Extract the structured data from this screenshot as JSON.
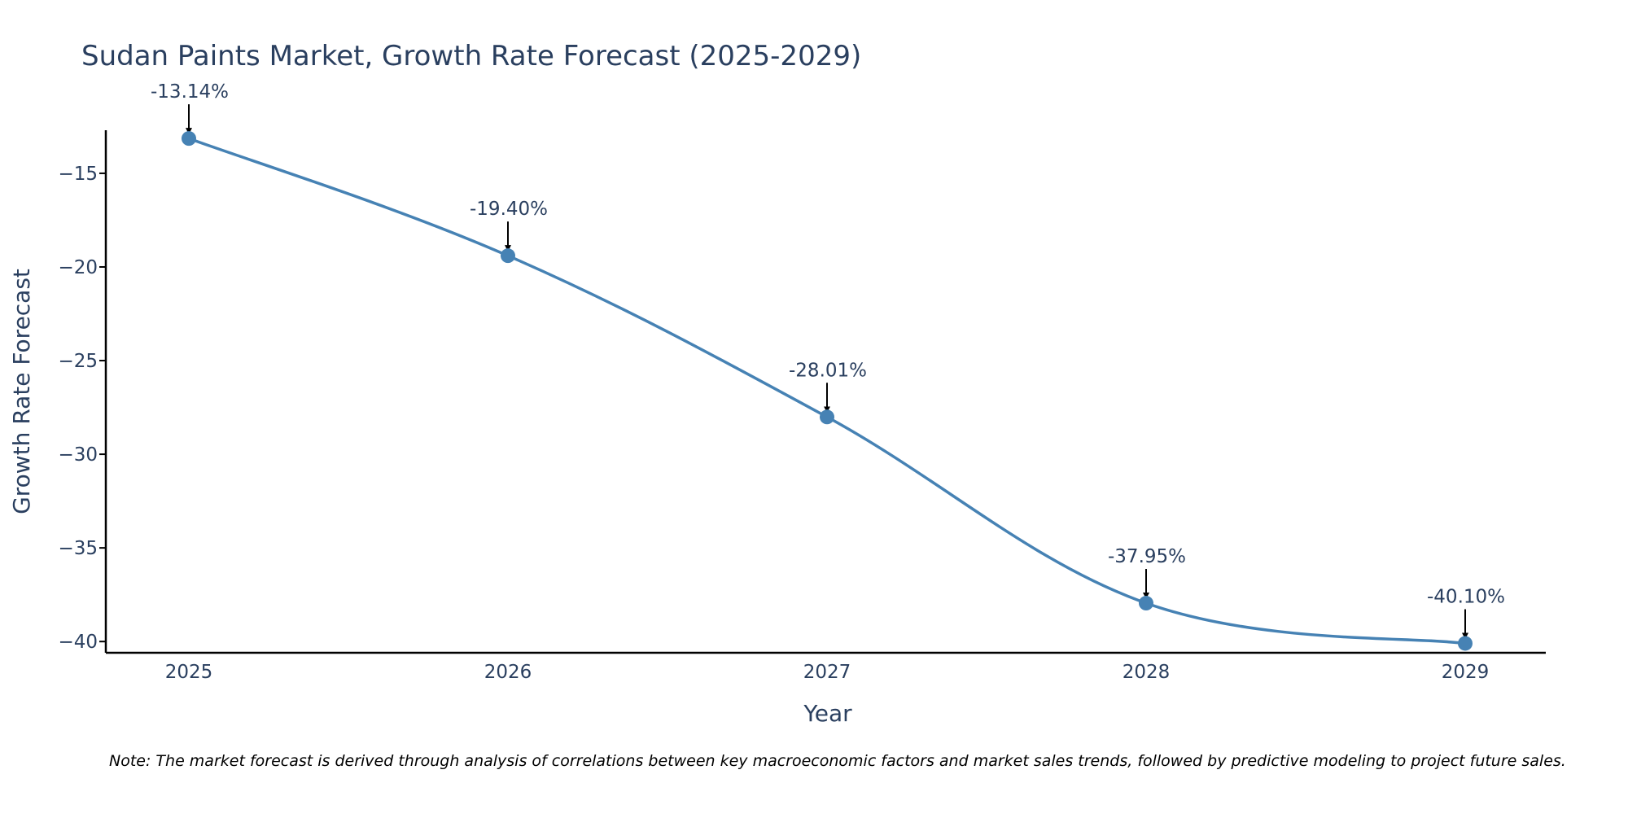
{
  "chart_data": {
    "type": "line",
    "title": "Sudan Paints Market, Growth Rate Forecast (2025-2029)",
    "xlabel": "Year",
    "ylabel": "Growth Rate Forecast",
    "x": [
      "2025",
      "2026",
      "2027",
      "2028",
      "2029"
    ],
    "series": [
      {
        "name": "Growth Rate Forecast",
        "values": [
          -13.14,
          -19.4,
          -28.01,
          -37.95,
          -40.1
        ]
      }
    ],
    "data_labels": [
      "-13.14%",
      "-19.40%",
      "-28.01%",
      "-37.95%",
      "-40.10%"
    ],
    "y_ticks": [
      -15,
      -20,
      -25,
      -30,
      -35,
      -40
    ],
    "y_tick_labels": [
      "−15",
      "−20",
      "−25",
      "−30",
      "−35",
      "−40"
    ],
    "ylim": [
      -40.6,
      -12.7
    ],
    "grid": false,
    "line_color": "#4682b4",
    "note": "Note: The market forecast is derived through analysis of correlations between key macroeconomic factors and market sales trends, followed by predictive modeling to project future sales."
  }
}
